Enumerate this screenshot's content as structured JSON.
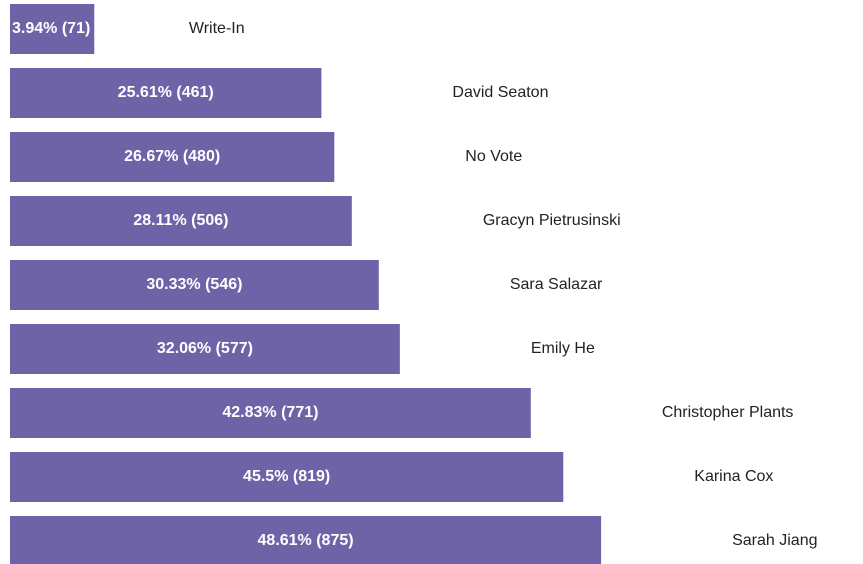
{
  "chart_data": {
    "type": "bar",
    "orientation": "horizontal",
    "color": "#6f63a8",
    "categories": [
      "Write-In",
      "David Seaton",
      "No Vote",
      "Gracyn Pietrusinski",
      "Sara Salazar",
      "Emily He",
      "Christopher Plants",
      "Karina Cox",
      "Sarah Jiang"
    ],
    "values": [
      3.94,
      25.61,
      26.67,
      28.11,
      30.33,
      32.06,
      42.83,
      45.5,
      48.61
    ],
    "value_labels": [
      "3.94% (71)",
      "25.61% (461)",
      "26.67% (480)",
      "28.11% (506)",
      "30.33% (546)",
      "32.06% (577)",
      "42.83% (771)",
      "45.5% (819)",
      "48.61% (875)"
    ]
  }
}
